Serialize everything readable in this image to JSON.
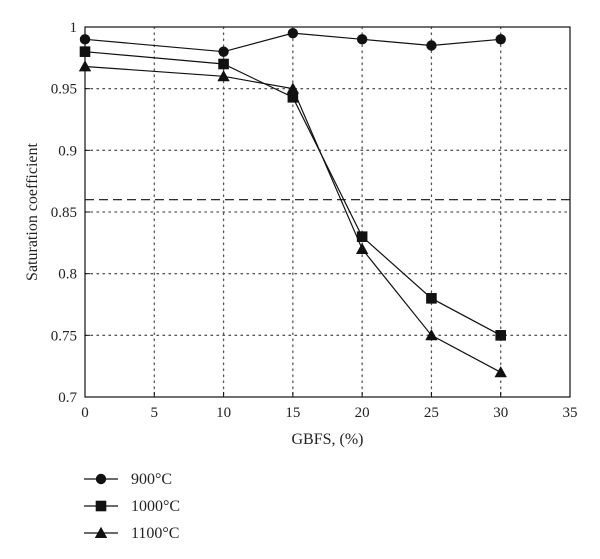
{
  "chart_data": {
    "type": "line",
    "title": "",
    "xlabel": "GBFS, (%)",
    "ylabel": "Saturation coefficient",
    "xlim": [
      0,
      35
    ],
    "ylim": [
      0.7,
      1.0
    ],
    "xticks": [
      0,
      5,
      10,
      15,
      20,
      25,
      30,
      35
    ],
    "yticks": [
      0.7,
      0.75,
      0.8,
      0.85,
      0.9,
      0.95,
      1.0
    ],
    "xtick_labels": [
      "0",
      "5",
      "10",
      "15",
      "20",
      "25",
      "30",
      "35"
    ],
    "ytick_labels": [
      "0.7",
      "0.75",
      "0.8",
      "0.85",
      "0.9",
      "0.95",
      "1"
    ],
    "grid": "dotted",
    "reference_line": {
      "y": 0.86,
      "style": "dashed"
    },
    "legend_position": "bottom-left",
    "series": [
      {
        "name": "900°C",
        "marker": "circle",
        "x": [
          0,
          10,
          15,
          20,
          25,
          30
        ],
        "y": [
          0.99,
          0.98,
          0.995,
          0.99,
          0.985,
          0.99
        ]
      },
      {
        "name": "1000°C",
        "marker": "square",
        "x": [
          0,
          10,
          15,
          20,
          25,
          30
        ],
        "y": [
          0.98,
          0.97,
          0.943,
          0.83,
          0.78,
          0.75
        ]
      },
      {
        "name": "1100°C",
        "marker": "triangle",
        "x": [
          0,
          10,
          15,
          20,
          25,
          30
        ],
        "y": [
          0.968,
          0.96,
          0.95,
          0.82,
          0.75,
          0.72
        ]
      }
    ]
  },
  "colors": {
    "line": "#111111",
    "grid": "#555555",
    "background": "#ffffff"
  }
}
